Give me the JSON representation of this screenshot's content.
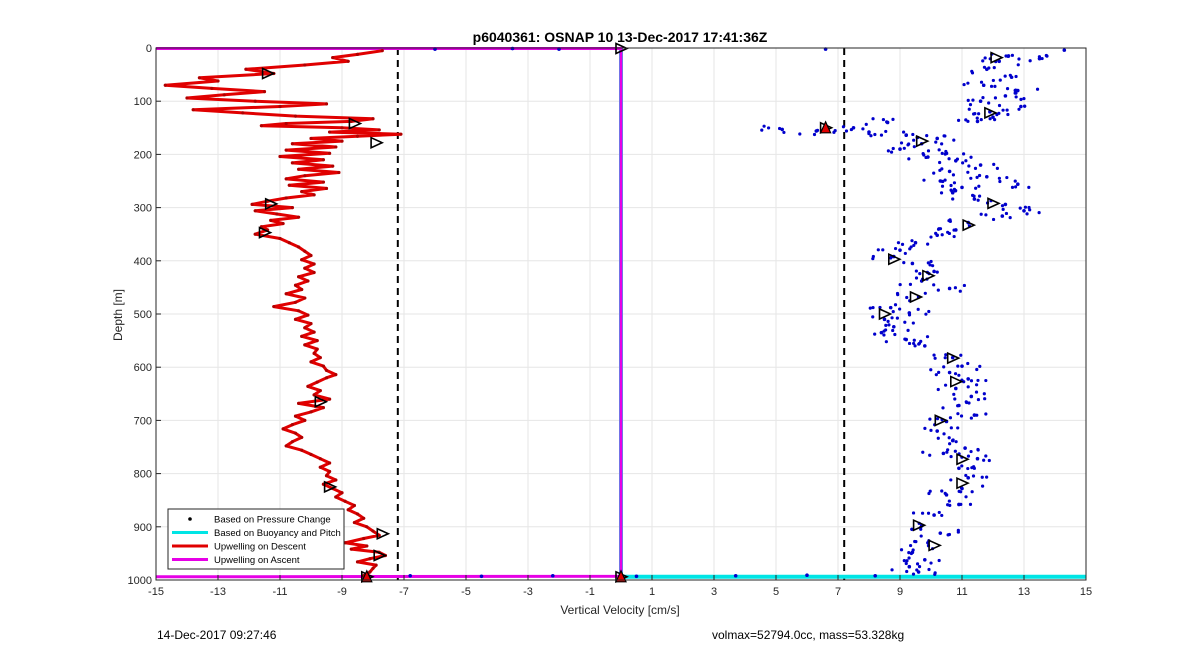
{
  "chart_data": {
    "type": "scatter",
    "title": "p6040361: OSNAP 10 13-Dec-2017 17:41:36Z",
    "xlabel": "Vertical Velocity [cm/s]",
    "ylabel": "Depth [m]",
    "xlim": [
      -15,
      15
    ],
    "ylim": [
      0,
      1000
    ],
    "y_reversed": true,
    "grid": true,
    "x_ticks": [
      -15,
      -13,
      -11,
      -9,
      -7,
      -5,
      -3,
      -1,
      1,
      3,
      5,
      7,
      9,
      11,
      13,
      15
    ],
    "y_ticks": [
      0,
      100,
      200,
      300,
      400,
      500,
      600,
      700,
      800,
      900,
      1000
    ],
    "threshold_lines_x": [
      -7.2,
      7.2
    ],
    "legend_position": "bottom-left",
    "legend": [
      "Based on Pressure Change",
      "Based on Buoyancy and Pitch",
      "Upwelling on Descent",
      "Upwelling on Ascent"
    ],
    "series": [
      {
        "name": "Upwelling on Descent",
        "color": "#e00000",
        "points": [
          [
            -7.7,
            5
          ],
          [
            -8.5,
            12
          ],
          [
            -9.3,
            18
          ],
          [
            -8.8,
            25
          ],
          [
            -10.2,
            32
          ],
          [
            -12.1,
            40
          ],
          [
            -11.2,
            48
          ],
          [
            -13.6,
            56
          ],
          [
            -13.0,
            62
          ],
          [
            -14.7,
            70
          ],
          [
            -13.2,
            76
          ],
          [
            -11.5,
            82
          ],
          [
            -12.8,
            88
          ],
          [
            -14.0,
            94
          ],
          [
            -11.8,
            100
          ],
          [
            -9.5,
            105
          ],
          [
            -11.0,
            110
          ],
          [
            -13.8,
            116
          ],
          [
            -12.2,
            122
          ],
          [
            -10.5,
            128
          ],
          [
            -8.0,
            133
          ],
          [
            -8.7,
            138
          ],
          [
            -10.8,
            142
          ],
          [
            -11.6,
            146
          ],
          [
            -9.0,
            150
          ],
          [
            -7.8,
            154
          ],
          [
            -9.4,
            158
          ],
          [
            -7.1,
            162
          ],
          [
            -8.5,
            166
          ],
          [
            -10.0,
            170
          ],
          [
            -9.0,
            175
          ],
          [
            -10.6,
            180
          ],
          [
            -9.2,
            186
          ],
          [
            -10.8,
            192
          ],
          [
            -9.4,
            198
          ],
          [
            -11.0,
            204
          ],
          [
            -9.6,
            210
          ],
          [
            -10.6,
            216
          ],
          [
            -9.3,
            222
          ],
          [
            -10.4,
            228
          ],
          [
            -9.1,
            234
          ],
          [
            -10.2,
            240
          ],
          [
            -10.8,
            246
          ],
          [
            -9.6,
            252
          ],
          [
            -10.7,
            258
          ],
          [
            -9.5,
            264
          ],
          [
            -10.3,
            270
          ],
          [
            -9.9,
            276
          ],
          [
            -10.8,
            282
          ],
          [
            -11.4,
            288
          ],
          [
            -11.9,
            294
          ],
          [
            -10.6,
            300
          ],
          [
            -11.8,
            306
          ],
          [
            -11.1,
            312
          ],
          [
            -10.4,
            318
          ],
          [
            -11.3,
            324
          ],
          [
            -10.9,
            330
          ],
          [
            -11.6,
            336
          ],
          [
            -11.4,
            342
          ],
          [
            -11.8,
            350
          ],
          [
            -11.0,
            358
          ],
          [
            -10.7,
            366
          ],
          [
            -10.4,
            374
          ],
          [
            -10.2,
            382
          ],
          [
            -10.0,
            390
          ],
          [
            -10.3,
            398
          ],
          [
            -9.9,
            406
          ],
          [
            -10.2,
            414
          ],
          [
            -9.9,
            422
          ],
          [
            -10.4,
            430
          ],
          [
            -10.1,
            438
          ],
          [
            -10.5,
            446
          ],
          [
            -10.3,
            454
          ],
          [
            -10.8,
            462
          ],
          [
            -10.2,
            470
          ],
          [
            -10.5,
            478
          ],
          [
            -11.2,
            486
          ],
          [
            -10.4,
            494
          ],
          [
            -10.1,
            502
          ],
          [
            -10.5,
            510
          ],
          [
            -10.0,
            518
          ],
          [
            -10.2,
            526
          ],
          [
            -9.9,
            534
          ],
          [
            -10.3,
            542
          ],
          [
            -9.8,
            550
          ],
          [
            -10.2,
            558
          ],
          [
            -9.8,
            566
          ],
          [
            -9.9,
            574
          ],
          [
            -9.7,
            582
          ],
          [
            -10.0,
            590
          ],
          [
            -9.6,
            598
          ],
          [
            -9.5,
            606
          ],
          [
            -9.2,
            614
          ],
          [
            -9.5,
            620
          ],
          [
            -9.8,
            628
          ],
          [
            -10.1,
            636
          ],
          [
            -9.7,
            644
          ],
          [
            -9.9,
            652
          ],
          [
            -9.4,
            660
          ],
          [
            -10.4,
            668
          ],
          [
            -9.6,
            676
          ],
          [
            -10.0,
            684
          ],
          [
            -10.5,
            692
          ],
          [
            -10.2,
            700
          ],
          [
            -10.6,
            708
          ],
          [
            -10.9,
            716
          ],
          [
            -10.5,
            724
          ],
          [
            -10.3,
            732
          ],
          [
            -10.6,
            740
          ],
          [
            -10.8,
            748
          ],
          [
            -10.3,
            756
          ],
          [
            -10.0,
            764
          ],
          [
            -9.7,
            772
          ],
          [
            -9.4,
            780
          ],
          [
            -9.7,
            788
          ],
          [
            -9.4,
            796
          ],
          [
            -9.5,
            804
          ],
          [
            -9.2,
            812
          ],
          [
            -9.6,
            820
          ],
          [
            -9.3,
            828
          ],
          [
            -9.0,
            836
          ],
          [
            -9.2,
            844
          ],
          [
            -8.9,
            852
          ],
          [
            -8.6,
            860
          ],
          [
            -8.8,
            868
          ],
          [
            -8.5,
            876
          ],
          [
            -8.3,
            884
          ],
          [
            -8.6,
            892
          ],
          [
            -8.2,
            900
          ],
          [
            -8.0,
            908
          ],
          [
            -7.8,
            916
          ],
          [
            -8.3,
            922
          ],
          [
            -8.9,
            930
          ],
          [
            -8.2,
            936
          ],
          [
            -8.7,
            942
          ],
          [
            -7.8,
            948
          ],
          [
            -7.6,
            954
          ],
          [
            -8.1,
            960
          ],
          [
            -8.5,
            966
          ],
          [
            -7.9,
            972
          ],
          [
            -8.0,
            978
          ],
          [
            -8.1,
            985
          ],
          [
            -8.3,
            992
          ]
        ]
      },
      {
        "name": "Upwelling on Ascent",
        "color": "#e600e6",
        "points": [
          [
            -15,
            994
          ],
          [
            0,
            993
          ],
          [
            0,
            1
          ],
          [
            -15,
            1
          ]
        ]
      },
      {
        "name": "Based on Buoyancy and Pitch",
        "color": "#00e5e5",
        "points": [
          [
            0,
            0
          ],
          [
            0,
            994
          ],
          [
            15,
            994
          ]
        ]
      },
      {
        "name": "Based on Pressure Change",
        "color": "#0000cc",
        "points": [
          [
            6.6,
            2
          ],
          [
            14.3,
            4
          ],
          [
            12.5,
            15
          ],
          [
            13.5,
            20
          ],
          [
            12.2,
            25
          ],
          [
            11.8,
            40
          ],
          [
            12.6,
            55
          ],
          [
            11.7,
            70
          ],
          [
            12.8,
            80
          ],
          [
            12.4,
            90
          ],
          [
            11.6,
            100
          ],
          [
            12.9,
            110
          ],
          [
            11.9,
            120
          ],
          [
            12.0,
            130
          ],
          [
            11.5,
            138
          ],
          [
            8.6,
            140
          ],
          [
            7.5,
            150
          ],
          [
            5.2,
            153
          ],
          [
            6.3,
            156
          ],
          [
            8.0,
            158
          ],
          [
            9.2,
            164
          ],
          [
            10.2,
            170
          ],
          [
            9.7,
            180
          ],
          [
            9.0,
            190
          ],
          [
            10.5,
            198
          ],
          [
            9.9,
            205
          ],
          [
            10.8,
            212
          ],
          [
            11.6,
            220
          ],
          [
            10.6,
            232
          ],
          [
            11.8,
            242
          ],
          [
            10.3,
            250
          ],
          [
            12.8,
            256
          ],
          [
            11.0,
            262
          ],
          [
            10.7,
            272
          ],
          [
            11.4,
            284
          ],
          [
            12.4,
            294
          ],
          [
            13.0,
            306
          ],
          [
            12.3,
            316
          ],
          [
            11.2,
            328
          ],
          [
            10.8,
            342
          ],
          [
            10.2,
            352
          ],
          [
            9.5,
            366
          ],
          [
            9.0,
            380
          ],
          [
            8.8,
            392
          ],
          [
            9.4,
            405
          ],
          [
            10.1,
            420
          ],
          [
            9.7,
            438
          ],
          [
            10.6,
            452
          ],
          [
            9.6,
            468
          ],
          [
            8.7,
            488
          ],
          [
            9.3,
            498
          ],
          [
            8.5,
            510
          ],
          [
            8.8,
            524
          ],
          [
            8.4,
            535
          ],
          [
            9.2,
            548
          ],
          [
            9.8,
            560
          ],
          [
            10.7,
            582
          ],
          [
            11.0,
            598
          ],
          [
            10.6,
            610
          ],
          [
            11.2,
            622
          ],
          [
            10.8,
            640
          ],
          [
            11.3,
            655
          ],
          [
            10.9,
            672
          ],
          [
            11.4,
            690
          ],
          [
            10.5,
            702
          ],
          [
            10.2,
            720
          ],
          [
            10.7,
            738
          ],
          [
            11.1,
            752
          ],
          [
            10.4,
            762
          ],
          [
            11.5,
            772
          ],
          [
            10.9,
            790
          ],
          [
            11.2,
            808
          ],
          [
            11.0,
            828
          ],
          [
            10.5,
            840
          ],
          [
            10.9,
            858
          ],
          [
            10.1,
            878
          ],
          [
            9.7,
            898
          ],
          [
            10.3,
            912
          ],
          [
            9.9,
            930
          ],
          [
            9.4,
            948
          ],
          [
            9.8,
            962
          ],
          [
            9.3,
            975
          ],
          [
            9.6,
            985
          ],
          [
            -2.0,
            2
          ],
          [
            -3.5,
            1
          ],
          [
            -6.0,
            2
          ],
          [
            -6.8,
            992
          ],
          [
            -4.5,
            993
          ],
          [
            -2.2,
            992
          ],
          [
            0.5,
            993
          ],
          [
            3.7,
            992
          ],
          [
            6.0,
            991
          ],
          [
            8.2,
            992
          ]
        ]
      }
    ],
    "markers": [
      [
        -11.4,
        48
      ],
      [
        -8.6,
        142
      ],
      [
        -7.9,
        178
      ],
      [
        -11.3,
        293
      ],
      [
        -11.5,
        347
      ],
      [
        -9.7,
        665
      ],
      [
        -9.4,
        825
      ],
      [
        -7.7,
        913
      ],
      [
        -7.8,
        954
      ],
      [
        -8.2,
        994
      ],
      [
        0,
        1
      ],
      [
        0,
        994
      ],
      [
        12.1,
        18
      ],
      [
        11.9,
        122
      ],
      [
        6.6,
        150
      ],
      [
        9.7,
        175
      ],
      [
        12.0,
        292
      ],
      [
        11.2,
        333
      ],
      [
        8.8,
        397
      ],
      [
        9.9,
        428
      ],
      [
        9.5,
        468
      ],
      [
        8.5,
        500
      ],
      [
        10.7,
        583
      ],
      [
        10.8,
        627
      ],
      [
        10.3,
        700
      ],
      [
        11.0,
        773
      ],
      [
        11.0,
        818
      ],
      [
        9.6,
        897
      ],
      [
        10.1,
        935
      ]
    ],
    "red_triangles": [
      [
        6.6,
        150
      ],
      [
        -8.2,
        994
      ],
      [
        0,
        994
      ]
    ]
  },
  "footer": {
    "left": "14-Dec-2017 09:27:46",
    "right": "volmax=52794.0cc, mass=53.328kg"
  }
}
